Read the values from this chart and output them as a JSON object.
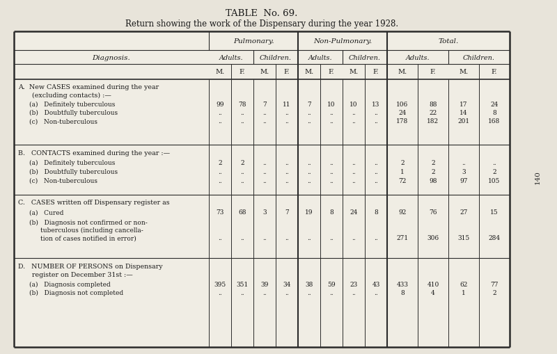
{
  "title1": "TABLE  No. 69.",
  "title2": "Return showing the work of the Dispensary during the year 1928.",
  "bg_color": "#e8e4da",
  "table_bg": "#f0ede4",
  "sections": [
    {
      "letter": "A.",
      "title_lines": [
        "New CASES examined during the year",
        "    (excluding contacts) :—"
      ],
      "rows": [
        {
          "label": "(a)   Definitely tuberculous",
          "data": [
            "99",
            "78",
            "7",
            "11",
            "7",
            "10",
            "10",
            "13",
            "106",
            "88",
            "17",
            "24"
          ]
        },
        {
          "label": "(b)   Doubtfully tuberculous",
          "data": [
            "..",
            "..",
            "..",
            "..",
            "..",
            "..",
            "..",
            "..",
            "24",
            "22",
            "14",
            "8"
          ]
        },
        {
          "label": "(c)   Non-tuberculous",
          "data": [
            "..",
            "..",
            "..",
            "..",
            "..",
            "..",
            "..",
            "..",
            "178",
            "182",
            "201",
            "168"
          ]
        }
      ]
    },
    {
      "letter": "B.",
      "title_lines": [
        "CONTACTS examined during the year :—"
      ],
      "rows": [
        {
          "label": "(a)   Definitely tuberculous",
          "data": [
            "2",
            "2",
            "..",
            "..",
            "..",
            "..",
            "..",
            "..",
            "2",
            "2",
            "..",
            ".."
          ]
        },
        {
          "label": "(b)   Doubtfully tuberculous",
          "data": [
            "..",
            "..",
            "..",
            "..",
            "..",
            "..",
            "..",
            "..",
            "1",
            "2",
            "3",
            "2"
          ]
        },
        {
          "label": "(c)   Non-tuberculous",
          "data": [
            "..",
            "..",
            "..",
            "..",
            "..",
            "..",
            "..",
            "..",
            "72",
            "98",
            "97",
            "105"
          ]
        }
      ]
    },
    {
      "letter": "C.",
      "title_lines": [
        "CASES written off Dispensary register as"
      ],
      "rows": [
        {
          "label": "(a)   Cured",
          "data": [
            "73",
            "68",
            "3",
            "7",
            "19",
            "8",
            "24",
            "8",
            "92",
            "76",
            "27",
            "15"
          ]
        },
        {
          "label_lines": [
            "(b)   Diagnosis not confirmed or non-",
            "         tuberculous (including cancella-",
            "         tion of cases notified in error)"
          ],
          "data": [
            "..",
            "..",
            "..",
            "..",
            "..",
            "..",
            "..",
            "..",
            "271",
            "306",
            "315",
            "284"
          ]
        }
      ]
    },
    {
      "letter": "D.",
      "title_lines": [
        "NUMBER OF PERSONS on Dispensary",
        "    register on December 31st :—"
      ],
      "rows": [
        {
          "label": "(a)   Diagnosis completed",
          "data": [
            "395",
            "351",
            "39",
            "34",
            "38",
            "59",
            "23",
            "43",
            "433",
            "410",
            "62",
            "77"
          ]
        },
        {
          "label": "(b)   Diagnosis not completed",
          "data": [
            "..",
            "..",
            "..",
            "..",
            "..",
            "..",
            "..",
            "..",
            "8",
            "4",
            "1",
            "2"
          ]
        }
      ]
    }
  ],
  "font_family": "serif",
  "sidebar_text": "140"
}
